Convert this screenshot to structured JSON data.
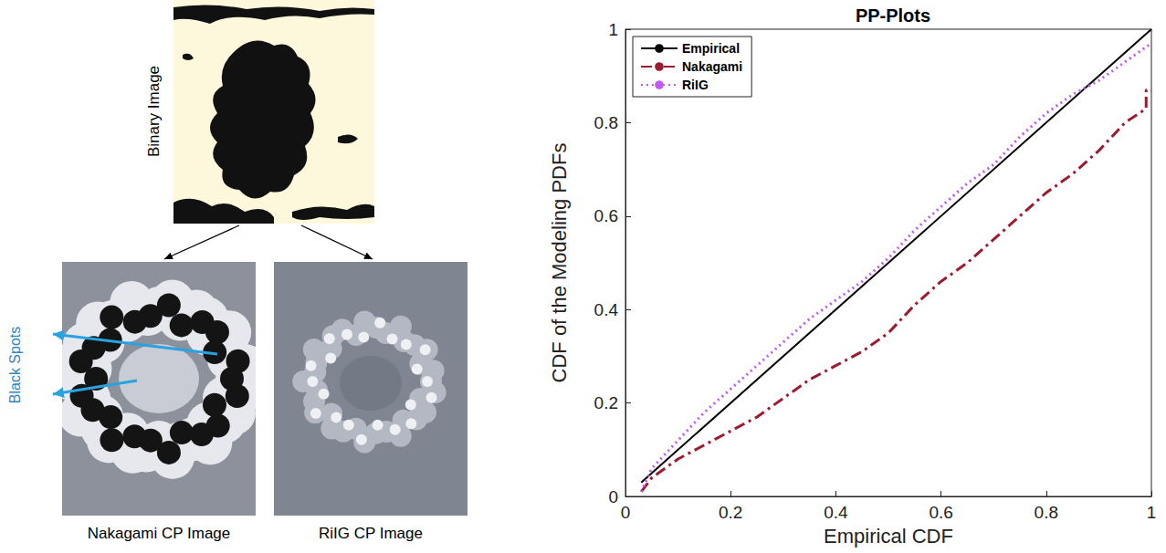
{
  "chart_data": {
    "type": "line",
    "title": "PP-Plots",
    "xlabel": "Empirical CDF",
    "ylabel": "CDF of the Modeling PDFs",
    "xlim": [
      0,
      1
    ],
    "ylim": [
      0,
      1
    ],
    "xticks": [
      0,
      0.2,
      0.4,
      0.6,
      0.8,
      1
    ],
    "yticks": [
      0,
      0.2,
      0.4,
      0.6,
      0.8,
      1
    ],
    "grid": false,
    "legend": "upper left",
    "series": [
      {
        "name": "Empirical",
        "color": "#000000",
        "line_style": "solid",
        "marker": "none",
        "x": [
          0.03,
          1
        ],
        "values": [
          0.03,
          1
        ]
      },
      {
        "name": "Nakagami",
        "color": "#9b1b30",
        "line_style": "dashdot",
        "marker": "none",
        "x": [
          0.03,
          0.05,
          0.1,
          0.15,
          0.2,
          0.25,
          0.3,
          0.35,
          0.4,
          0.45,
          0.5,
          0.55,
          0.6,
          0.65,
          0.7,
          0.75,
          0.8,
          0.85,
          0.9,
          0.95,
          0.99,
          0.99,
          1
        ],
        "values": [
          0.01,
          0.04,
          0.08,
          0.11,
          0.14,
          0.17,
          0.21,
          0.25,
          0.28,
          0.31,
          0.35,
          0.41,
          0.46,
          0.5,
          0.55,
          0.6,
          0.65,
          0.69,
          0.74,
          0.8,
          0.83,
          0.87,
          0.87
        ]
      },
      {
        "name": "RiIG",
        "color": "#bf5af2",
        "line_style": "dotted",
        "marker": "none",
        "x": [
          0.03,
          0.05,
          0.1,
          0.15,
          0.2,
          0.25,
          0.3,
          0.35,
          0.4,
          0.45,
          0.5,
          0.55,
          0.6,
          0.65,
          0.7,
          0.75,
          0.8,
          0.85,
          0.9,
          0.95,
          1
        ],
        "values": [
          0.01,
          0.06,
          0.12,
          0.18,
          0.23,
          0.28,
          0.33,
          0.38,
          0.42,
          0.46,
          0.51,
          0.57,
          0.62,
          0.67,
          0.71,
          0.77,
          0.82,
          0.86,
          0.89,
          0.93,
          0.97
        ]
      }
    ]
  },
  "figure_panels": {
    "binary_image": {
      "label": "Binary Image"
    },
    "callout": "Black Spots",
    "images": [
      {
        "caption": "Nakagami CP Image"
      },
      {
        "caption": "RiIG CP Image"
      }
    ]
  }
}
